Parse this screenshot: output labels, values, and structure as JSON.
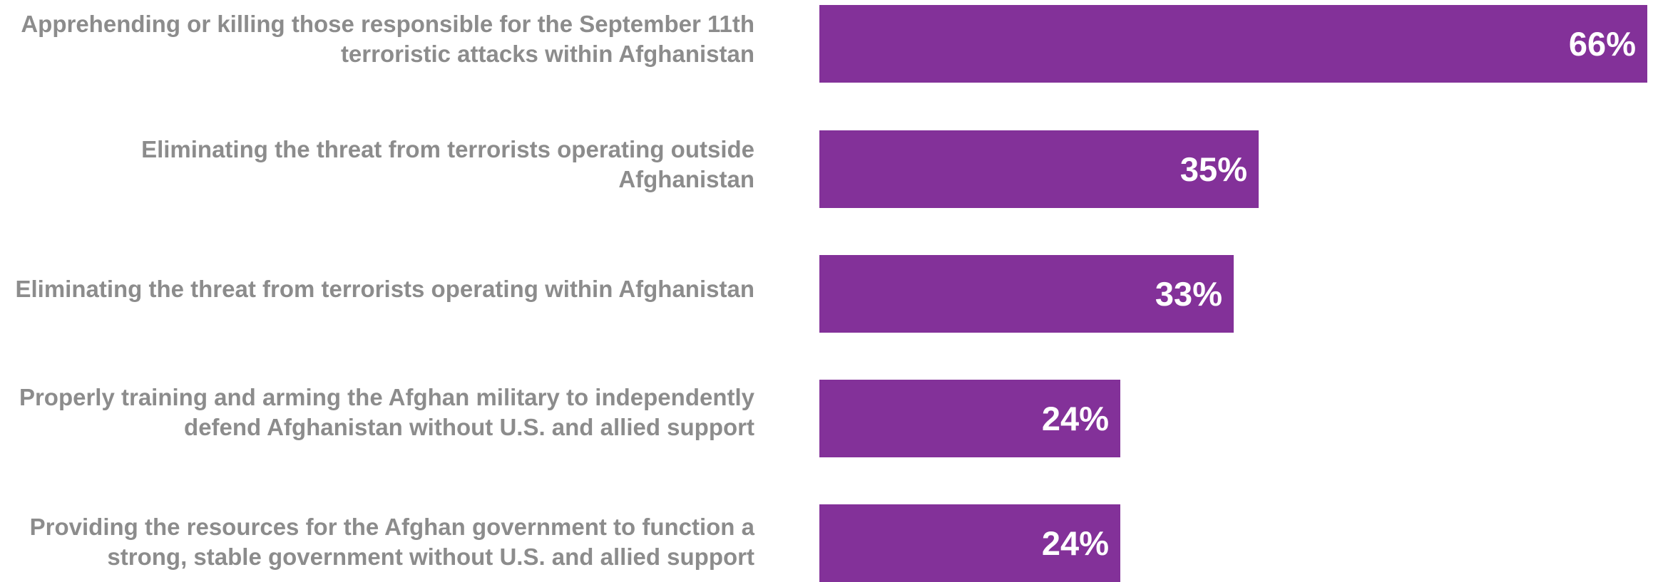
{
  "chart_data": {
    "type": "bar",
    "orientation": "horizontal",
    "categories": [
      "Apprehending or killing those responsible for the September 11th terroristic attacks within Afghanistan",
      "Eliminating the threat from terrorists operating outside Afghanistan",
      "Eliminating the threat from terrorists operating within Afghanistan",
      "Properly training and arming the Afghan military to independently defend Afghanistan without U.S. and allied support",
      "Providing the resources for the Afghan government to function a strong, stable government without U.S. and allied support"
    ],
    "values": [
      66,
      35,
      33,
      24,
      24
    ],
    "value_labels": [
      "66%",
      "35%",
      "33%",
      "24%",
      "24%"
    ],
    "title": "",
    "xlabel": "",
    "ylabel": "",
    "xlim": [
      0,
      66
    ],
    "grid": false,
    "legend": "none",
    "colors": {
      "bar": "#833199",
      "label_text": "#8c8c8c",
      "value_text": "#ffffff"
    }
  }
}
